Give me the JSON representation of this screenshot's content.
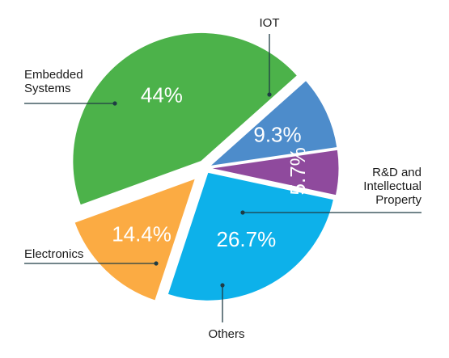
{
  "chart_data": {
    "type": "pie",
    "title": "",
    "slices": [
      {
        "label": "IOT",
        "label_lines": [
          "IOT"
        ],
        "value": 44,
        "value_text": "44%",
        "color": "#4cb24a"
      },
      {
        "label": "R&D and Intellectual Property",
        "label_lines": [
          "R&D and",
          "Intellectual",
          "Property"
        ],
        "value": 9.3,
        "value_text": "9.3%",
        "color": "#4d8ccb"
      },
      {
        "label": "Others",
        "label_lines": [
          "Others"
        ],
        "value": 5.7,
        "value_text": "5.7%",
        "color": "#8f4a9d"
      },
      {
        "label": "Electronics",
        "label_lines": [
          "Electronics"
        ],
        "value": 26.7,
        "value_text": "26.7%",
        "color": "#0db1ea"
      },
      {
        "label": "Embedded Systems",
        "label_lines": [
          "Embedded",
          "Systems"
        ],
        "value": 14.4,
        "value_text": "14.4%",
        "color": "#fbab43"
      }
    ],
    "exploded": "Embedded Systems, IOT"
  }
}
